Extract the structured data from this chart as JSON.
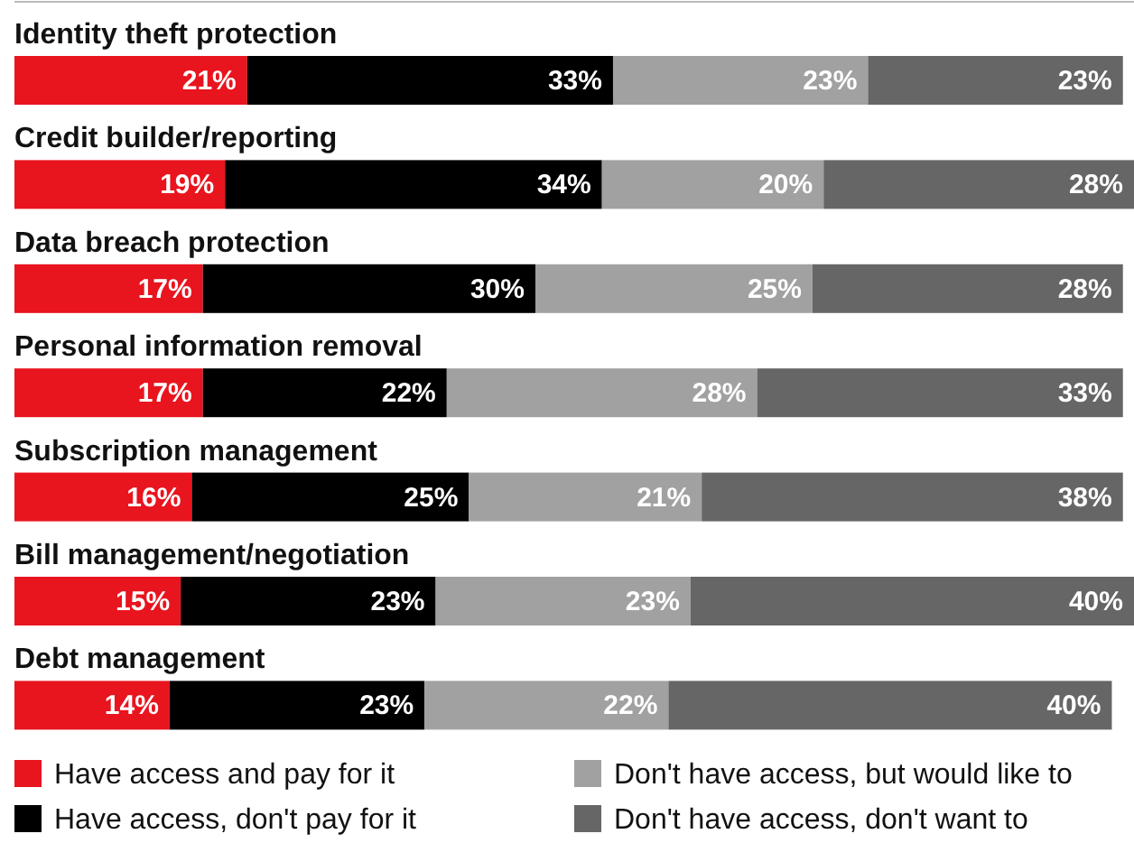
{
  "chart_data": {
    "type": "bar",
    "orientation": "horizontal",
    "stacked": true,
    "legend": "bottom",
    "categories": [
      "Identity theft protection",
      "Credit builder/reporting",
      "Data breach protection",
      "Personal information removal",
      "Subscription management",
      "Bill management/negotiation",
      "Debt management"
    ],
    "series": [
      {
        "name": "Have access and pay for it",
        "color": "#e8141e",
        "values": [
          21,
          19,
          17,
          17,
          16,
          15,
          14
        ],
        "value_labels": [
          "21%",
          "19%",
          "17%",
          "17%",
          "16%",
          "15%",
          "14%"
        ]
      },
      {
        "name": "Have access, don't pay for it",
        "color": "#000000",
        "values": [
          33,
          34,
          30,
          22,
          25,
          23,
          23
        ],
        "value_labels": [
          "33%",
          "34%",
          "30%",
          "22%",
          "25%",
          "23%",
          "23%"
        ]
      },
      {
        "name": "Don't have access, but would like to",
        "color": "#a1a1a1",
        "values": [
          23,
          20,
          25,
          28,
          21,
          23,
          22
        ],
        "value_labels": [
          "23%",
          "20%",
          "25%",
          "28%",
          "21%",
          "23%",
          "22%"
        ]
      },
      {
        "name": "Don't have access, don't want to",
        "color": "#666666",
        "values": [
          23,
          28,
          28,
          33,
          38,
          40,
          40
        ],
        "value_labels": [
          "23%",
          "28%",
          "28%",
          "33%",
          "38%",
          "40%",
          "40%"
        ]
      }
    ]
  }
}
